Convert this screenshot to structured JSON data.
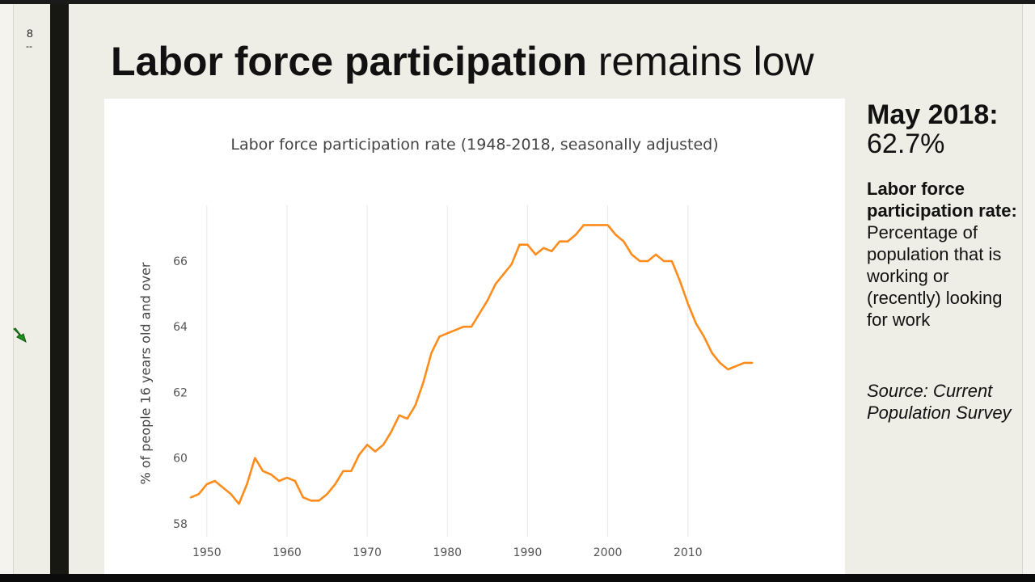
{
  "slide": {
    "number": "8",
    "marker": "--"
  },
  "title": {
    "bold": "Labor force participation",
    "rest": "remains low"
  },
  "sidebar": {
    "stat_label": "May 2018:",
    "stat_value": "62.7%",
    "definition_term": "Labor force participation rate:",
    "definition_text": "Percentage of population that is working or (recently) looking for work",
    "source": "Source: Current Population Survey"
  },
  "colors": {
    "line": "#ff8c1a",
    "grid": "#e8e8e8",
    "text": "#444444"
  },
  "chart_data": {
    "type": "line",
    "title": "Labor force participation rate (1948-2018, seasonally adjusted)",
    "xlabel": "",
    "ylabel": "% of people 16 years old and over",
    "xlim": [
      1947.8,
      2019
    ],
    "ylim": [
      57.6,
      67.7
    ],
    "x_ticks": [
      1950,
      1960,
      1970,
      1980,
      1990,
      2000,
      2010
    ],
    "y_ticks": [
      58,
      60,
      62,
      64,
      66
    ],
    "grid": "vertical",
    "x": [
      1948,
      1949,
      1950,
      1951,
      1952,
      1953,
      1954,
      1955,
      1956,
      1957,
      1958,
      1959,
      1960,
      1961,
      1962,
      1963,
      1964,
      1965,
      1966,
      1967,
      1968,
      1969,
      1970,
      1971,
      1972,
      1973,
      1974,
      1975,
      1976,
      1977,
      1978,
      1979,
      1980,
      1981,
      1982,
      1983,
      1984,
      1985,
      1986,
      1987,
      1988,
      1989,
      1990,
      1991,
      1992,
      1993,
      1994,
      1995,
      1996,
      1997,
      1998,
      1999,
      2000,
      2001,
      2002,
      2003,
      2004,
      2005,
      2006,
      2007,
      2008,
      2009,
      2010,
      2011,
      2012,
      2013,
      2014,
      2015,
      2016,
      2017,
      2018
    ],
    "values": [
      58.8,
      58.9,
      59.2,
      59.3,
      59.1,
      58.9,
      58.6,
      59.2,
      60.0,
      59.6,
      59.5,
      59.3,
      59.4,
      59.3,
      58.8,
      58.7,
      58.7,
      58.9,
      59.2,
      59.6,
      59.6,
      60.1,
      60.4,
      60.2,
      60.4,
      60.8,
      61.3,
      61.2,
      61.6,
      62.3,
      63.2,
      63.7,
      63.8,
      63.9,
      64.0,
      64.0,
      64.4,
      64.8,
      65.3,
      65.6,
      65.9,
      66.5,
      66.5,
      66.2,
      66.4,
      66.3,
      66.6,
      66.6,
      66.8,
      67.1,
      67.1,
      67.1,
      67.1,
      66.8,
      66.6,
      66.2,
      66.0,
      66.0,
      66.2,
      66.0,
      66.0,
      65.4,
      64.7,
      64.1,
      63.7,
      63.2,
      62.9,
      62.7,
      62.8,
      62.9,
      62.9
    ]
  }
}
